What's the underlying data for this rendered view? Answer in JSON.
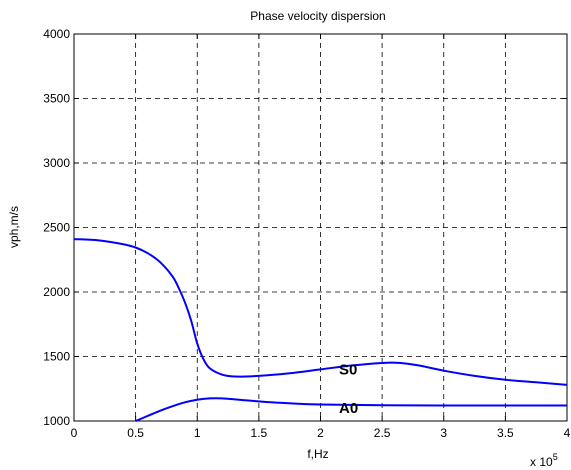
{
  "chart_data": {
    "type": "line",
    "title": "Phase velocity dispersion",
    "xlabel": "f,Hz",
    "ylabel": "vph,m/s",
    "x_multiplier": {
      "base": "x 10",
      "exponent": "5"
    },
    "xlim": [
      0,
      4
    ],
    "ylim": [
      1000,
      4000
    ],
    "xticks": [
      0,
      0.5,
      1,
      1.5,
      2,
      2.5,
      3,
      3.5,
      4
    ],
    "xtick_labels": [
      "0",
      "0.5",
      "1",
      "1.5",
      "2",
      "2.5",
      "3",
      "3.5",
      "4"
    ],
    "yticks": [
      1000,
      1500,
      2000,
      2500,
      3000,
      3500,
      4000
    ],
    "ytick_labels": [
      "1000",
      "1500",
      "2000",
      "2500",
      "3000",
      "3500",
      "4000"
    ],
    "grid": true,
    "grid_style": "dashed",
    "line_color": "#0000ff",
    "series": [
      {
        "name": "S0",
        "x": [
          0,
          0.2,
          0.4,
          0.5,
          0.6,
          0.7,
          0.8,
          0.85,
          0.9,
          0.95,
          1.0,
          1.05,
          1.1,
          1.2,
          1.3,
          1.5,
          1.75,
          2.0,
          2.25,
          2.5,
          2.65,
          2.8,
          3.0,
          3.25,
          3.5,
          3.75,
          4.0
        ],
        "y": [
          2410,
          2400,
          2370,
          2345,
          2300,
          2230,
          2120,
          2030,
          1920,
          1780,
          1600,
          1480,
          1410,
          1360,
          1345,
          1350,
          1370,
          1400,
          1430,
          1450,
          1450,
          1430,
          1390,
          1350,
          1320,
          1300,
          1280
        ]
      },
      {
        "name": "A0",
        "x": [
          0.5,
          0.6,
          0.7,
          0.8,
          0.9,
          1.0,
          1.1,
          1.2,
          1.4,
          1.6,
          1.8,
          2.0,
          2.5,
          3.0,
          3.5,
          4.0
        ],
        "y": [
          1000,
          1040,
          1080,
          1115,
          1145,
          1165,
          1175,
          1175,
          1160,
          1145,
          1135,
          1128,
          1122,
          1120,
          1120,
          1120
        ]
      }
    ],
    "annotations": [
      {
        "text": "S0",
        "x": 2.15,
        "y": 1400
      },
      {
        "text": "A0",
        "x": 2.15,
        "y": 1100
      }
    ]
  }
}
